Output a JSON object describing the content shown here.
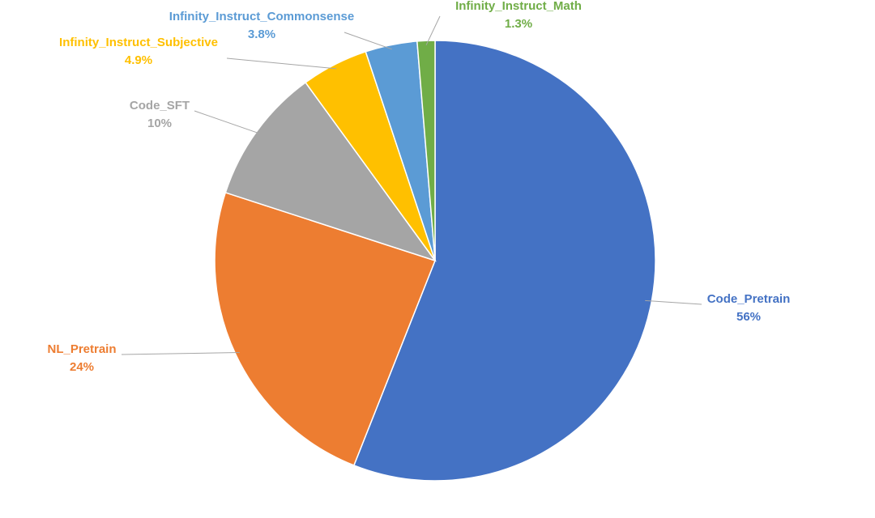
{
  "chart_data": {
    "type": "pie",
    "title": "",
    "start_angle_deg": 0,
    "direction": "clockwise",
    "slices": [
      {
        "label": "Code_Pretrain",
        "value": 56,
        "value_label": "56%",
        "color": "#4472c4"
      },
      {
        "label": "NL_Pretrain",
        "value": 24,
        "value_label": "24%",
        "color": "#ed7d31"
      },
      {
        "label": "Code_SFT",
        "value": 10,
        "value_label": "10%",
        "color": "#a5a5a5"
      },
      {
        "label": "Infinity_Instruct_Subjective",
        "value": 4.9,
        "value_label": "4.9%",
        "color": "#ffc000"
      },
      {
        "label": "Infinity_Instruct_Commonsense",
        "value": 3.8,
        "value_label": "3.8%",
        "color": "#5b9bd5"
      },
      {
        "label": "Infinity_Instruct_Math",
        "value": 1.3,
        "value_label": "1.3%",
        "color": "#70ad47"
      }
    ],
    "data_labels": "outside-with-leader-lines",
    "legend": "none"
  }
}
